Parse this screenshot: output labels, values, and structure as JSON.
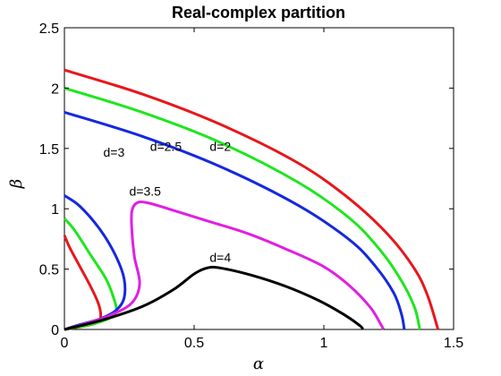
{
  "chart_data": {
    "type": "line",
    "title": "Real-complex partition",
    "xlabel": "α",
    "ylabel": "β",
    "xlim": [
      0,
      1.5
    ],
    "ylim": [
      0,
      2.5
    ],
    "xticks": [
      0,
      0.5,
      1,
      1.5
    ],
    "xtick_labels": [
      "0",
      "0.5",
      "1",
      "1.5"
    ],
    "yticks": [
      0,
      0.5,
      1,
      1.5,
      2,
      2.5
    ],
    "ytick_labels": [
      "0",
      "0.5",
      "1",
      "1.5",
      "2",
      "2.5"
    ],
    "grid": false,
    "legend": "none",
    "series": [
      {
        "name": "d=2",
        "color": "#e8161b",
        "segments": [
          [
            [
              0,
              2.15
            ],
            [
              0.3,
              1.95
            ],
            [
              0.6,
              1.7
            ],
            [
              0.9,
              1.38
            ],
            [
              1.1,
              1.08
            ],
            [
              1.25,
              0.78
            ],
            [
              1.35,
              0.5
            ],
            [
              1.4,
              0.28
            ],
            [
              1.44,
              0.0
            ]
          ],
          [
            [
              0,
              0.78
            ],
            [
              0.02,
              0.68
            ],
            [
              0.06,
              0.52
            ],
            [
              0.1,
              0.36
            ],
            [
              0.13,
              0.22
            ],
            [
              0.14,
              0.12
            ],
            [
              0.13,
              0.06
            ],
            [
              0.08,
              0.03
            ],
            [
              0,
              0.0
            ]
          ]
        ]
      },
      {
        "name": "d=2.5",
        "color": "#1ee61e",
        "segments": [
          [
            [
              0,
              2.0
            ],
            [
              0.3,
              1.8
            ],
            [
              0.6,
              1.55
            ],
            [
              0.9,
              1.22
            ],
            [
              1.1,
              0.92
            ],
            [
              1.22,
              0.65
            ],
            [
              1.3,
              0.4
            ],
            [
              1.35,
              0.18
            ],
            [
              1.37,
              0.0
            ]
          ],
          [
            [
              0,
              0.92
            ],
            [
              0.04,
              0.82
            ],
            [
              0.1,
              0.62
            ],
            [
              0.16,
              0.42
            ],
            [
              0.19,
              0.26
            ],
            [
              0.2,
              0.15
            ],
            [
              0.17,
              0.09
            ],
            [
              0.1,
              0.04
            ],
            [
              0,
              0.0
            ]
          ]
        ]
      },
      {
        "name": "d=3",
        "color": "#1428e0",
        "segments": [
          [
            [
              0,
              1.8
            ],
            [
              0.3,
              1.6
            ],
            [
              0.6,
              1.35
            ],
            [
              0.9,
              1.03
            ],
            [
              1.1,
              0.74
            ],
            [
              1.2,
              0.52
            ],
            [
              1.27,
              0.3
            ],
            [
              1.3,
              0.12
            ],
            [
              1.31,
              0.0
            ]
          ],
          [
            [
              0,
              1.11
            ],
            [
              0.06,
              1.02
            ],
            [
              0.14,
              0.82
            ],
            [
              0.2,
              0.6
            ],
            [
              0.23,
              0.42
            ],
            [
              0.23,
              0.26
            ],
            [
              0.2,
              0.16
            ],
            [
              0.14,
              0.09
            ],
            [
              0.06,
              0.04
            ],
            [
              0,
              0.0
            ]
          ]
        ]
      },
      {
        "name": "d=3.5",
        "color": "#e01fe3",
        "segments": [
          [
            [
              0,
              0.0
            ],
            [
              0.1,
              0.06
            ],
            [
              0.18,
              0.12
            ],
            [
              0.26,
              0.22
            ],
            [
              0.29,
              0.38
            ],
            [
              0.27,
              0.6
            ],
            [
              0.26,
              0.82
            ],
            [
              0.26,
              0.98
            ],
            [
              0.28,
              1.05
            ],
            [
              0.32,
              1.05
            ],
            [
              0.4,
              1.0
            ],
            [
              0.55,
              0.9
            ],
            [
              0.7,
              0.8
            ],
            [
              0.85,
              0.67
            ],
            [
              1.0,
              0.52
            ],
            [
              1.1,
              0.36
            ],
            [
              1.18,
              0.18
            ],
            [
              1.22,
              0.04
            ],
            [
              1.23,
              0.0
            ]
          ]
        ]
      },
      {
        "name": "d=4",
        "color": "#000000",
        "segments": [
          [
            [
              0,
              0.0
            ],
            [
              0.15,
              0.08
            ],
            [
              0.3,
              0.19
            ],
            [
              0.42,
              0.33
            ],
            [
              0.5,
              0.46
            ],
            [
              0.55,
              0.51
            ],
            [
              0.6,
              0.51
            ],
            [
              0.72,
              0.45
            ],
            [
              0.85,
              0.36
            ],
            [
              0.98,
              0.24
            ],
            [
              1.08,
              0.12
            ],
            [
              1.14,
              0.03
            ],
            [
              1.15,
              0.0
            ]
          ]
        ]
      }
    ],
    "annotations": [
      {
        "text": "d=2",
        "x": 0.56,
        "y": 1.48
      },
      {
        "text": "d=2.5",
        "x": 0.33,
        "y": 1.48
      },
      {
        "text": "d=3",
        "x": 0.15,
        "y": 1.43
      },
      {
        "text": "d=3.5",
        "x": 0.25,
        "y": 1.11
      },
      {
        "text": "d=4",
        "x": 0.56,
        "y": 0.56
      }
    ]
  }
}
